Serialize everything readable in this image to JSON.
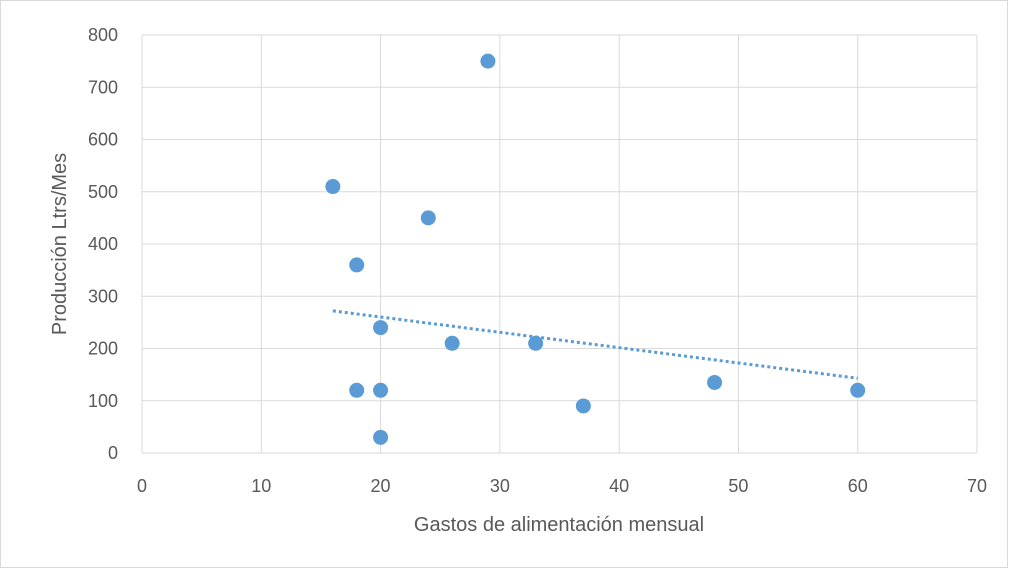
{
  "chart_data": {
    "type": "scatter",
    "title": "",
    "xlabel": "Gastos de alimentación mensual",
    "ylabel": "Producción Ltrs/Mes",
    "xlim": [
      0,
      70
    ],
    "ylim": [
      0,
      800
    ],
    "x_ticks": [
      0,
      10,
      20,
      30,
      40,
      50,
      60,
      70
    ],
    "y_ticks": [
      0,
      100,
      200,
      300,
      400,
      500,
      600,
      700,
      800
    ],
    "grid": true,
    "legend": "none",
    "point_color": "#5b9bd5",
    "trendline": {
      "type": "linear",
      "style": "dotted",
      "color": "#5b9bd5",
      "x_range": [
        16,
        60
      ],
      "y_range": [
        272,
        143
      ]
    },
    "points": [
      {
        "x": 16,
        "y": 510
      },
      {
        "x": 18,
        "y": 360
      },
      {
        "x": 18,
        "y": 120
      },
      {
        "x": 20,
        "y": 240
      },
      {
        "x": 20,
        "y": 120
      },
      {
        "x": 20,
        "y": 30
      },
      {
        "x": 24,
        "y": 450
      },
      {
        "x": 26,
        "y": 210
      },
      {
        "x": 29,
        "y": 750
      },
      {
        "x": 33,
        "y": 210
      },
      {
        "x": 37,
        "y": 90
      },
      {
        "x": 48,
        "y": 135
      },
      {
        "x": 60,
        "y": 120
      }
    ]
  }
}
